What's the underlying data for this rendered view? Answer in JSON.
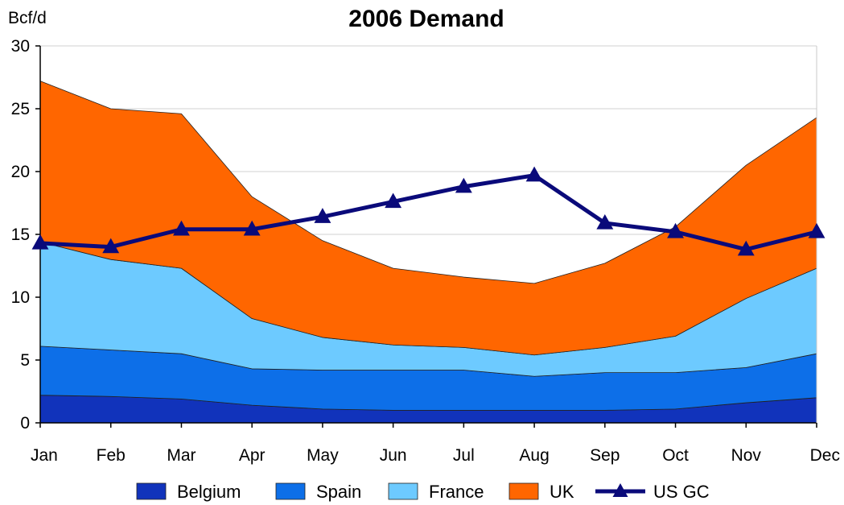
{
  "chart_data": {
    "type": "area",
    "stacked": true,
    "title": "2006 Demand",
    "ylabel": "Bcf/d",
    "xlabel": "",
    "ylim": [
      0,
      30
    ],
    "yticks": [
      0,
      5,
      10,
      15,
      20,
      25,
      30
    ],
    "grid": true,
    "legend_position": "bottom",
    "categories": [
      "Jan",
      "Feb",
      "Mar",
      "Apr",
      "May",
      "Jun",
      "Jul",
      "Aug",
      "Sep",
      "Oct",
      "Nov",
      "Dec"
    ],
    "series": [
      {
        "name": "Belgium",
        "type": "area",
        "color": "#1133bb",
        "values": [
          2.2,
          2.1,
          1.9,
          1.4,
          1.1,
          1.0,
          1.0,
          1.0,
          1.0,
          1.1,
          1.6,
          2.0
        ]
      },
      {
        "name": "Spain",
        "type": "area",
        "color": "#0d6fe8",
        "values": [
          3.9,
          3.7,
          3.6,
          2.9,
          3.1,
          3.2,
          3.2,
          2.7,
          3.0,
          2.9,
          2.8,
          3.5
        ]
      },
      {
        "name": "France",
        "type": "area",
        "color": "#6dcaff",
        "values": [
          8.3,
          7.2,
          6.8,
          4.0,
          2.6,
          2.0,
          1.8,
          1.7,
          2.0,
          2.9,
          5.5,
          6.8
        ]
      },
      {
        "name": "UK",
        "type": "area",
        "color": "#ff6600",
        "values": [
          12.8,
          12.0,
          12.3,
          9.7,
          7.7,
          6.1,
          5.6,
          5.7,
          6.7,
          8.7,
          10.6,
          12.0
        ]
      },
      {
        "name": "US GC",
        "type": "line",
        "color": "#0a0a7a",
        "marker": "triangle",
        "values": [
          14.3,
          14.0,
          15.4,
          15.4,
          16.4,
          17.6,
          18.8,
          19.7,
          15.9,
          15.2,
          13.8,
          15.2
        ]
      }
    ]
  }
}
